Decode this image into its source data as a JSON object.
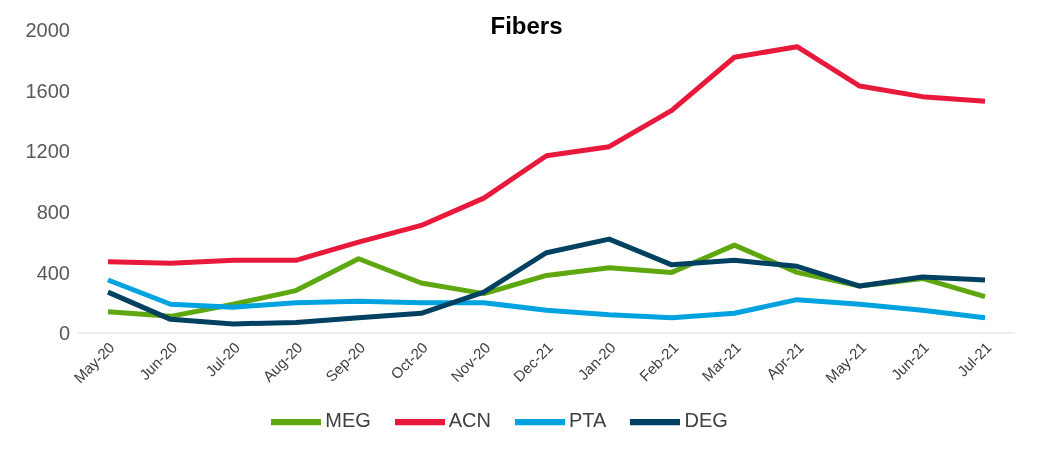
{
  "chart_data": {
    "type": "line",
    "title": "Fibers",
    "categories": [
      "May-20",
      "Jun-20",
      "Jul-20",
      "Aug-20",
      "Sep-20",
      "Oct-20",
      "Nov-20",
      "Dec-21",
      "Jan-20",
      "Feb-21",
      "Mar-21",
      "Apr-21",
      "May-21",
      "Jun-21",
      "Jul-21"
    ],
    "series": [
      {
        "name": "MEG",
        "color": "#5ea70f",
        "values": [
          140,
          110,
          190,
          280,
          490,
          330,
          260,
          380,
          430,
          400,
          580,
          400,
          310,
          360,
          240
        ]
      },
      {
        "name": "ACN",
        "color": "#e8193a",
        "values": [
          470,
          460,
          480,
          480,
          600,
          710,
          890,
          1170,
          1230,
          1470,
          1820,
          1890,
          1630,
          1560,
          1530
        ]
      },
      {
        "name": "PTA",
        "color": "#00a3e0",
        "values": [
          350,
          190,
          170,
          200,
          210,
          200,
          200,
          150,
          120,
          100,
          130,
          220,
          190,
          150,
          100
        ]
      },
      {
        "name": "DEG",
        "color": "#004060",
        "values": [
          270,
          90,
          60,
          70,
          100,
          130,
          270,
          530,
          620,
          450,
          480,
          440,
          310,
          370,
          350
        ]
      }
    ],
    "ylim": [
      0,
      2000
    ],
    "yticks": [
      0,
      400,
      800,
      1200,
      1600,
      2000
    ],
    "grid": false,
    "legend": "bottom",
    "marker": "none",
    "line_style": "solid"
  }
}
